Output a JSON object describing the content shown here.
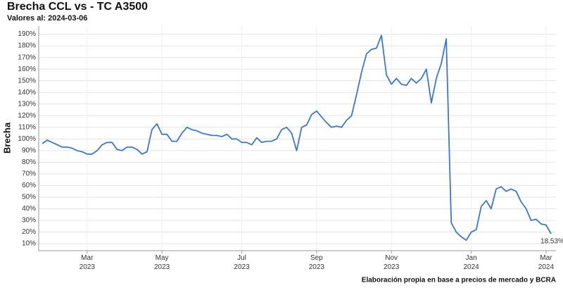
{
  "chart_data": {
    "type": "line",
    "title": "Brecha CCL vs - TC A3500",
    "subtitle": "Valores al: 2024-03-06",
    "y_label": "Brecha",
    "caption": "Elaboración propia en base a precios de mercado y BCRA",
    "categories": [
      null,
      null,
      null,
      null,
      null,
      null,
      null,
      null,
      null,
      "Mar 2023",
      null,
      null,
      null,
      null,
      null,
      null,
      null,
      null,
      null,
      null,
      null,
      null,
      null,
      null,
      "May 2023",
      null,
      null,
      null,
      null,
      null,
      null,
      null,
      null,
      null,
      null,
      null,
      null,
      null,
      null,
      null,
      "Jul 2023",
      null,
      null,
      null,
      null,
      null,
      null,
      null,
      null,
      null,
      null,
      null,
      null,
      null,
      null,
      "Sep 2023",
      null,
      null,
      null,
      null,
      null,
      null,
      null,
      null,
      null,
      null,
      null,
      null,
      null,
      null,
      "Nov 2023",
      null,
      null,
      null,
      null,
      null,
      null,
      null,
      null,
      null,
      null,
      null,
      null,
      null,
      null,
      null,
      "Jan 2024",
      null,
      null,
      null,
      null,
      null,
      null,
      null,
      null,
      null,
      null,
      null,
      null,
      null,
      null,
      "Mar 2024",
      null
    ],
    "series": [
      {
        "color": "#3a78d0",
        "values": [
          96,
          99,
          97,
          95,
          93,
          93,
          92,
          90,
          89,
          87,
          87,
          90,
          95,
          97,
          97,
          91,
          90,
          93,
          93,
          91,
          87,
          89,
          108,
          113,
          104,
          104,
          98,
          98,
          105,
          110,
          108,
          107,
          105,
          104,
          103,
          103,
          102,
          104,
          100,
          100,
          97,
          97,
          95,
          101,
          97,
          98,
          98,
          100,
          108,
          110,
          105,
          90,
          110,
          112,
          121,
          124,
          119,
          114,
          110,
          111,
          110,
          116,
          120,
          138,
          157,
          173,
          177,
          178,
          189,
          155,
          147,
          152,
          147,
          146,
          152,
          148,
          152,
          160,
          131,
          152,
          165,
          186,
          28,
          20,
          16,
          13,
          20,
          22,
          42,
          47,
          40,
          57,
          59,
          55,
          57,
          55,
          46,
          40,
          30,
          31,
          27,
          26,
          18.53
        ],
        "value_labels": [
          null,
          null,
          null,
          null,
          null,
          null,
          null,
          null,
          null,
          null,
          null,
          null,
          null,
          null,
          null,
          null,
          null,
          null,
          null,
          null,
          null,
          null,
          null,
          null,
          null,
          null,
          null,
          null,
          null,
          null,
          null,
          null,
          null,
          null,
          null,
          null,
          null,
          null,
          null,
          null,
          null,
          null,
          null,
          null,
          null,
          null,
          null,
          null,
          null,
          null,
          null,
          null,
          null,
          null,
          null,
          null,
          null,
          null,
          null,
          null,
          null,
          null,
          null,
          null,
          null,
          null,
          null,
          null,
          null,
          null,
          null,
          null,
          null,
          null,
          null,
          null,
          null,
          null,
          null,
          null,
          null,
          null,
          null,
          null,
          null,
          null,
          null,
          null,
          null,
          null,
          null,
          null,
          null,
          null,
          null,
          null,
          null,
          null,
          null,
          null,
          null,
          null,
          "18.53%"
        ]
      }
    ],
    "ylim": [
      4,
      197
    ],
    "yticks": [
      {
        "value": 10,
        "label": "10%"
      },
      {
        "value": 20,
        "label": "20%"
      },
      {
        "value": 30,
        "label": "30%"
      },
      {
        "value": 40,
        "label": "40%"
      },
      {
        "value": 50,
        "label": "50%"
      },
      {
        "value": 60,
        "label": "60%"
      },
      {
        "value": 70,
        "label": "70%"
      },
      {
        "value": 80,
        "label": "80%"
      },
      {
        "value": 90,
        "label": "90%"
      },
      {
        "value": 100,
        "label": "100%"
      },
      {
        "value": 110,
        "label": "110%"
      },
      {
        "value": 120,
        "label": "120%"
      },
      {
        "value": 130,
        "label": "130%"
      },
      {
        "value": 140,
        "label": "140%"
      },
      {
        "value": 150,
        "label": "150%"
      },
      {
        "value": 160,
        "label": "160%"
      },
      {
        "value": 170,
        "label": "170%"
      },
      {
        "value": 180,
        "label": "180%"
      },
      {
        "value": 190,
        "label": "190%"
      }
    ],
    "grid": true
  }
}
